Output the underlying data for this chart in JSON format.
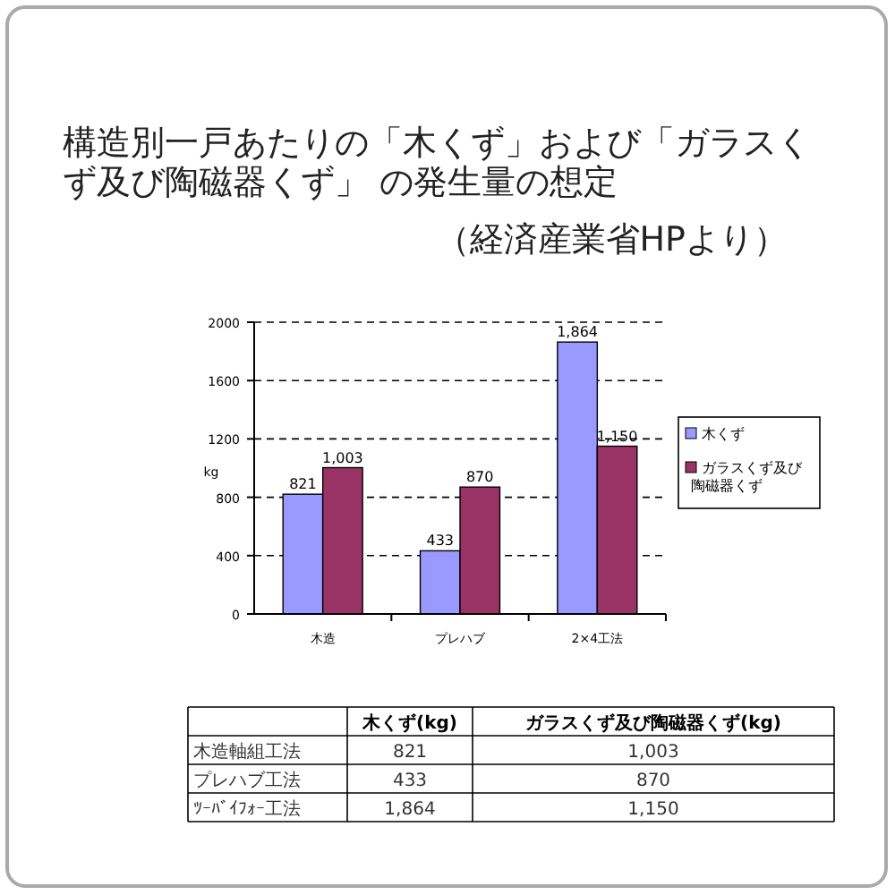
{
  "chart_data": {
    "type": "bar",
    "title": "構造別一戸あたりの「木くず」および「ガラスくず及び陶磁器くず」 の発生量の想定",
    "subtitle": "（経済産業省HPより）",
    "ylabel": "kg",
    "categories": [
      "木造",
      "プレハブ",
      "2×4工法"
    ],
    "series": [
      {
        "name": "木くず",
        "color": "#9999ff",
        "values": [
          821,
          433,
          1864
        ],
        "value_labels": [
          "821",
          "433",
          "1,864"
        ]
      },
      {
        "name": "ガラスくず及び陶磁器くず",
        "color": "#993366",
        "values": [
          1003,
          870,
          1150
        ],
        "value_labels": [
          "1,003",
          "870",
          "1,150"
        ]
      }
    ],
    "ylim": [
      0,
      2000
    ],
    "yticks": [
      0,
      400,
      800,
      1200,
      1600,
      2000
    ],
    "grid": "y",
    "legend": "right",
    "annotations": [
      "木くず(kg)",
      "ガラスくず及び陶磁器くず(kg)",
      "木造軸組工法",
      "プレハブ工法",
      "ﾂｰﾊﾞｲﾌｫｰ工法"
    ]
  }
}
